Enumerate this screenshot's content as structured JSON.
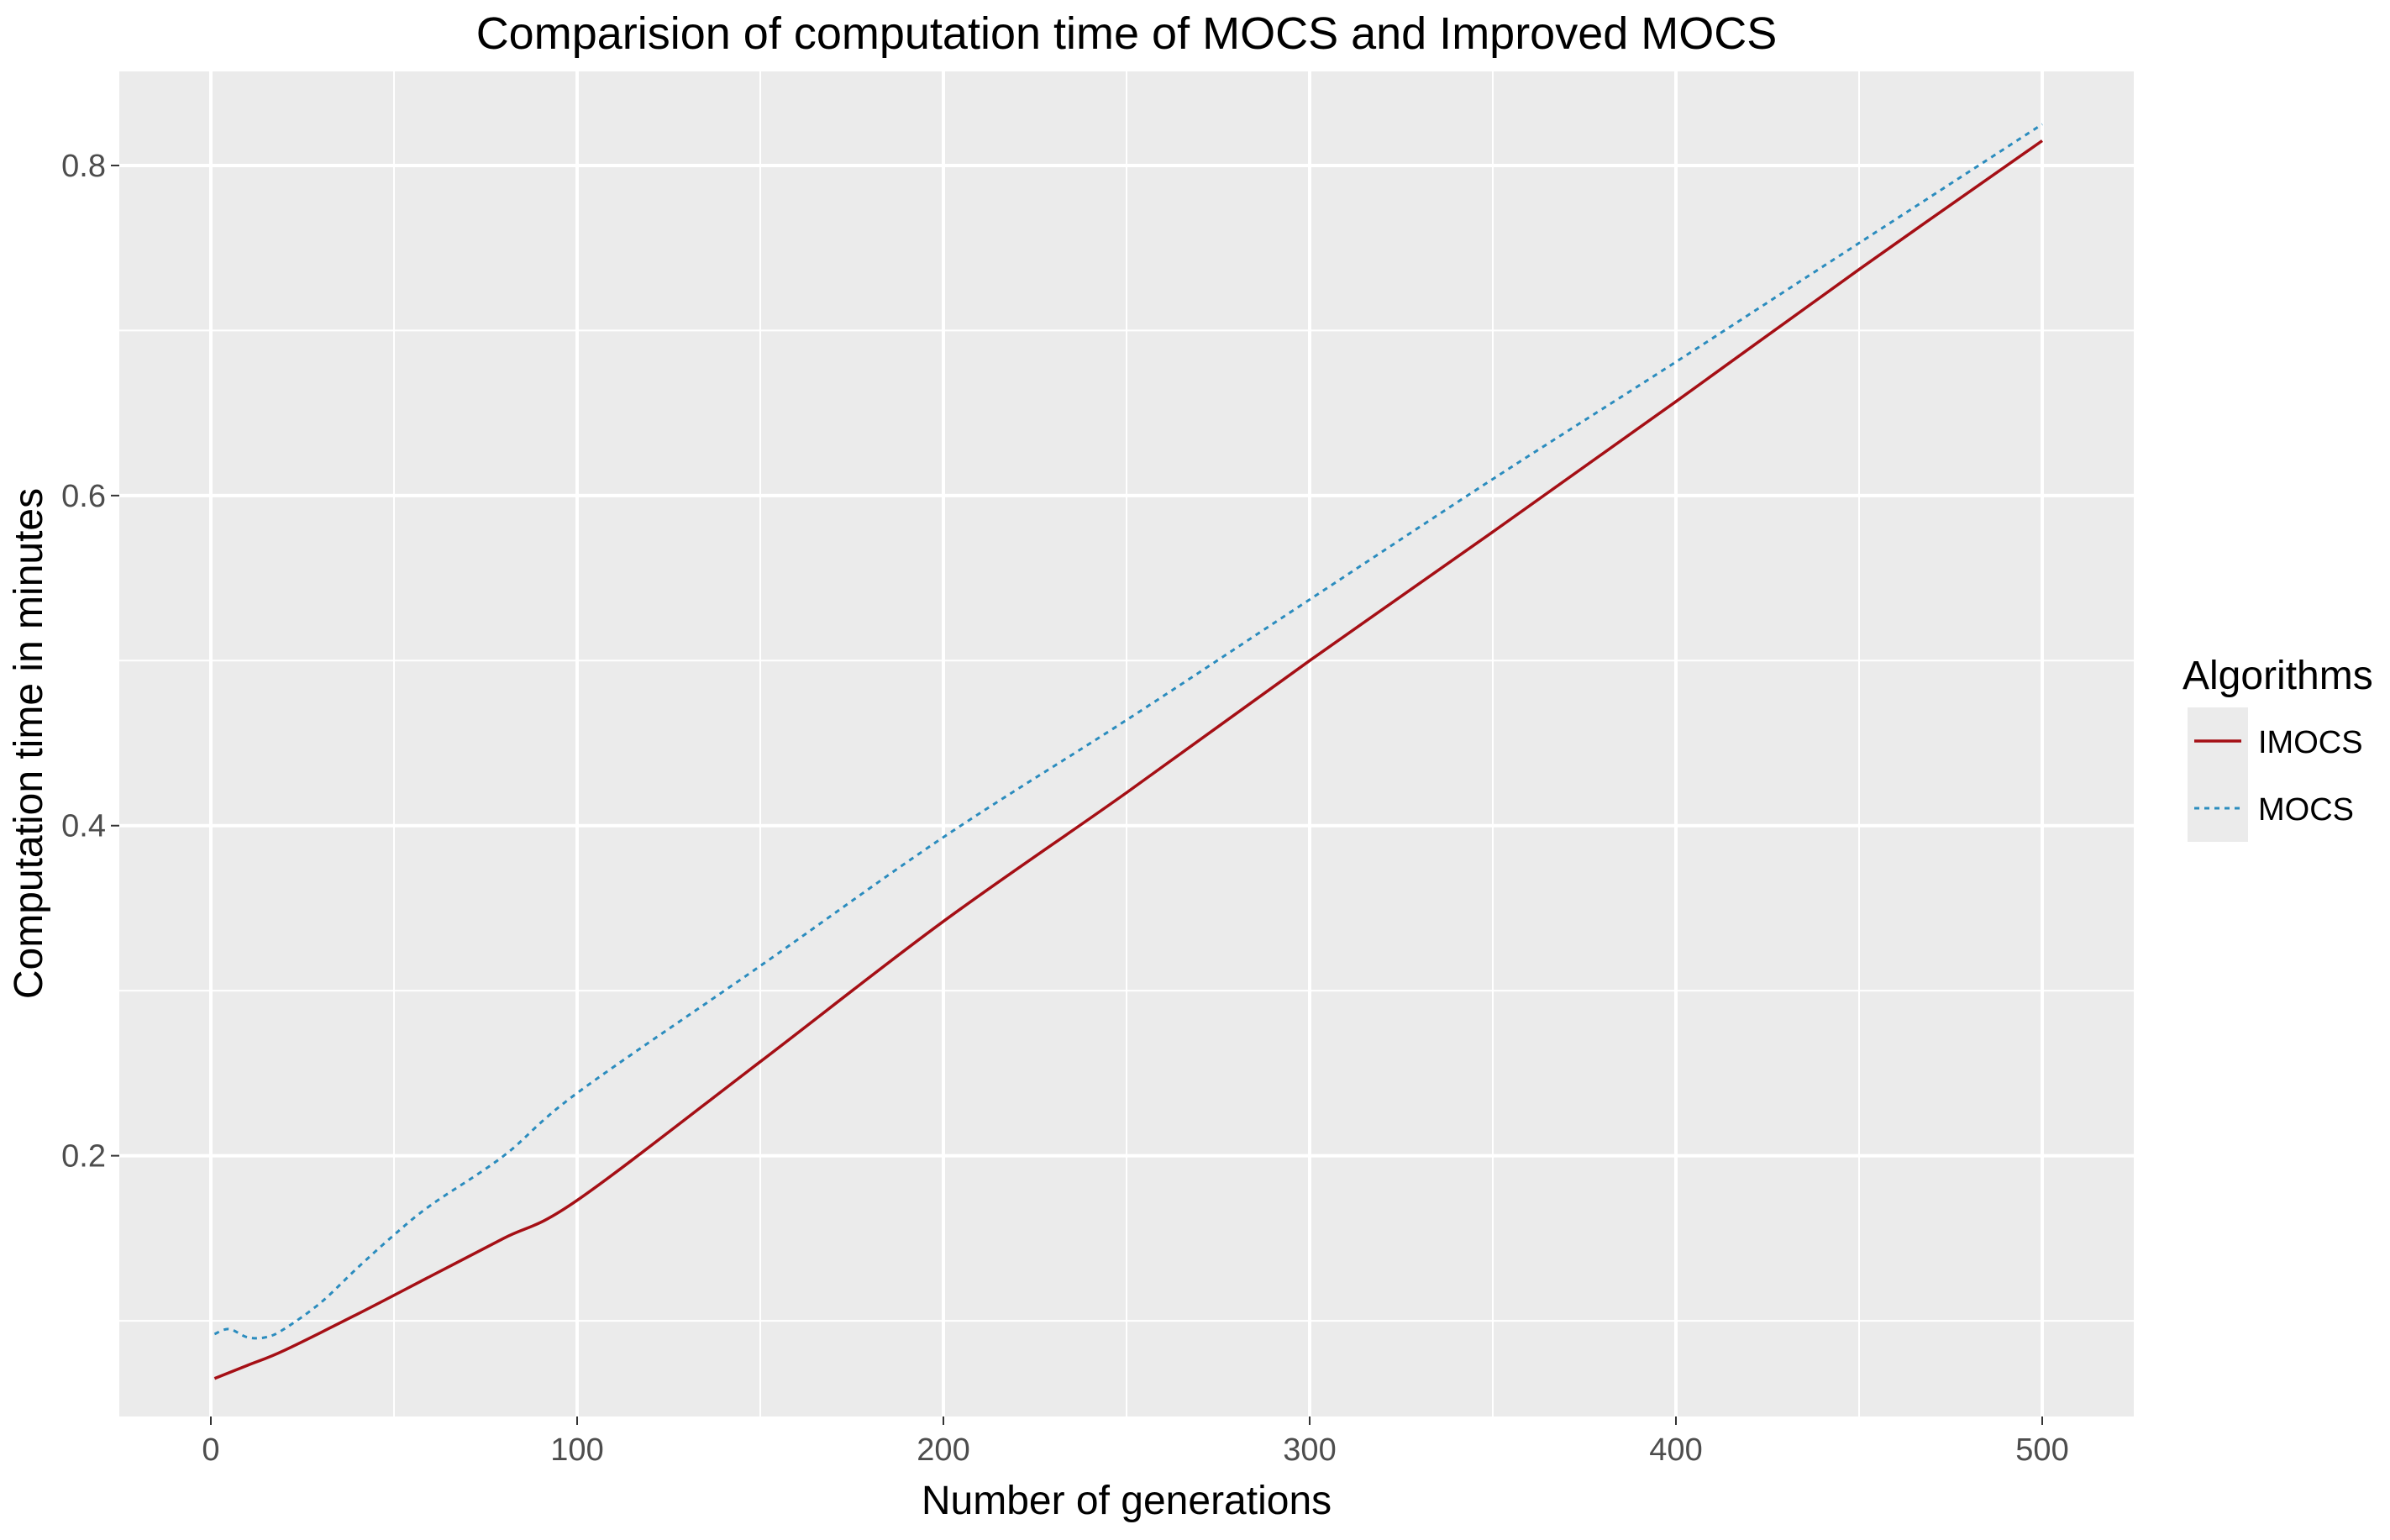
{
  "chart_data": {
    "type": "line",
    "title": "Comparision of computation time of MOCS and Improved MOCS",
    "xlabel": "Number of generations",
    "ylabel": "Computation time in minutes",
    "xlim": [
      -25,
      525
    ],
    "ylim": [
      0.042,
      0.857
    ],
    "x_ticks": [
      0,
      100,
      200,
      300,
      400,
      500
    ],
    "x_tick_labels": [
      "0",
      "100",
      "200",
      "300",
      "400",
      "500"
    ],
    "x_minor_ticks": [
      50,
      150,
      250,
      350,
      450
    ],
    "y_ticks": [
      0.2,
      0.4,
      0.6,
      0.8
    ],
    "y_tick_labels": [
      "0.2",
      "0.4",
      "0.6",
      "0.8"
    ],
    "y_minor_ticks": [
      0.1,
      0.3,
      0.5,
      0.7
    ],
    "grid": true,
    "legend": {
      "title": "Algorithms",
      "position": "right"
    },
    "series": [
      {
        "name": "IMOCS",
        "color": "#a50f15",
        "dash": "solid",
        "x": [
          1,
          10,
          20,
          40,
          60,
          80,
          100,
          150,
          200,
          250,
          300,
          350,
          400,
          450,
          500
        ],
        "y": [
          0.065,
          0.073,
          0.082,
          0.104,
          0.127,
          0.15,
          0.173,
          0.257,
          0.342,
          0.42,
          0.5,
          0.578,
          0.657,
          0.737,
          0.815
        ]
      },
      {
        "name": "MOCS",
        "color": "#2b8cbe",
        "dash": "dotted",
        "x": [
          1,
          5,
          10,
          15,
          20,
          30,
          40,
          50,
          60,
          80,
          100,
          150,
          200,
          250,
          300,
          350,
          400,
          450,
          500
        ],
        "y": [
          0.092,
          0.095,
          0.09,
          0.09,
          0.095,
          0.111,
          0.132,
          0.152,
          0.17,
          0.2,
          0.238,
          0.315,
          0.393,
          0.464,
          0.537,
          0.61,
          0.681,
          0.753,
          0.825
        ]
      }
    ]
  }
}
